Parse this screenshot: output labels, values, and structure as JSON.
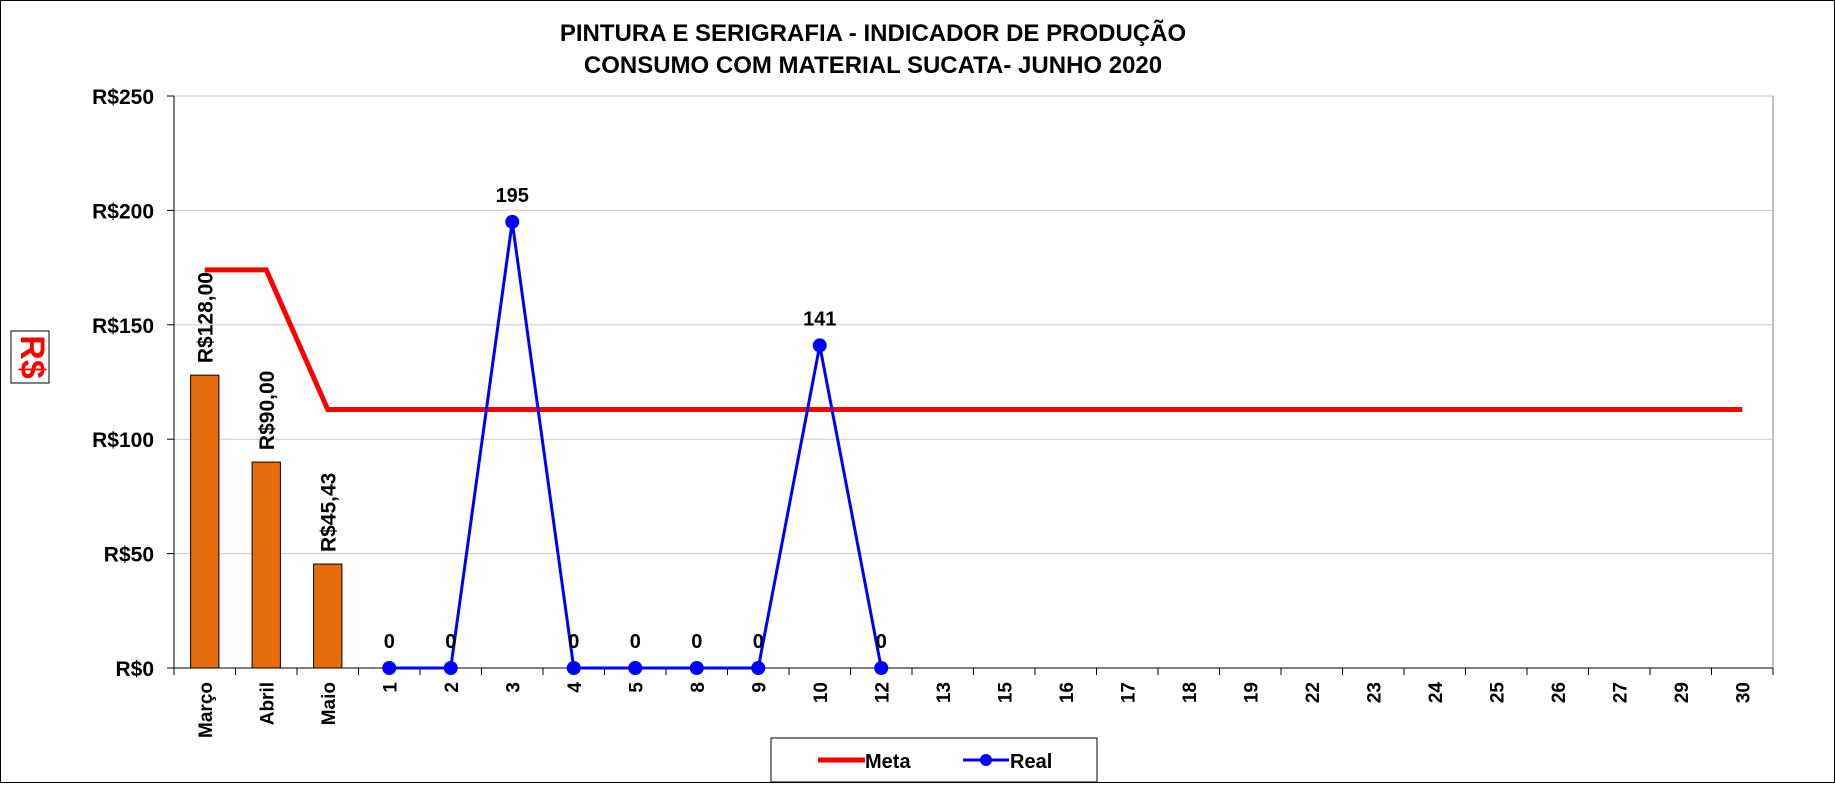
{
  "chart_data": {
    "type": "bar+line",
    "title": "PINTURA E SERIGRAFIA - INDICADOR DE  PRODUÇÃO",
    "subtitle": "CONSUMO COM MATERIAL SUCATA-  JUNHO 2020",
    "ylabel": "R$",
    "ylim": [
      0,
      250
    ],
    "yticks": [
      0,
      50,
      100,
      150,
      200,
      250
    ],
    "ytick_labels": [
      "R$0",
      "R$50",
      "R$100",
      "R$150",
      "R$200",
      "R$250"
    ],
    "grid": "horizontal",
    "legend_position": "bottom",
    "categories": [
      "Março",
      "Abril",
      "Maio",
      "1",
      "2",
      "3",
      "4",
      "5",
      "8",
      "9",
      "10",
      "12",
      "13",
      "15",
      "16",
      "17",
      "18",
      "19",
      "22",
      "23",
      "24",
      "25",
      "26",
      "27",
      "29",
      "30"
    ],
    "bars": {
      "categories": [
        "Março",
        "Abril",
        "Maio"
      ],
      "values": [
        128,
        90,
        45.43
      ],
      "labels": [
        "R$128,00",
        "R$90,00",
        "R$45,43"
      ],
      "color": "#E46C0A"
    },
    "series": [
      {
        "name": "Meta",
        "color": "#FF0000",
        "values": [
          174,
          174,
          113,
          113,
          113,
          113,
          113,
          113,
          113,
          113,
          113,
          113,
          113,
          113,
          113,
          113,
          113,
          113,
          113,
          113,
          113,
          113,
          113,
          113,
          113,
          113
        ]
      },
      {
        "name": "Real",
        "color": "#0000FF",
        "values": [
          null,
          null,
          null,
          0,
          0,
          195,
          0,
          0,
          0,
          0,
          141,
          0,
          null,
          null,
          null,
          null,
          null,
          null,
          null,
          null,
          null,
          null,
          null,
          null,
          null,
          null
        ],
        "labels": [
          null,
          null,
          null,
          "0",
          "0",
          "195",
          "0",
          "0",
          "0",
          "0",
          "141",
          "0",
          null,
          null,
          null,
          null,
          null,
          null,
          null,
          null,
          null,
          null,
          null,
          null,
          null,
          null
        ]
      }
    ]
  }
}
